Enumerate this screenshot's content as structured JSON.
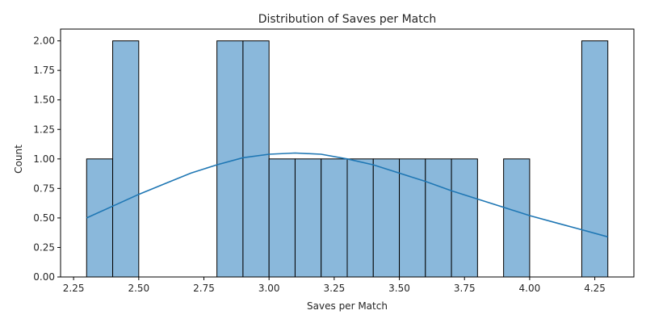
{
  "chart_data": {
    "type": "bar",
    "subtype": "histogram",
    "title": "Distribution of Saves per Match",
    "xlabel": "Saves per Match",
    "ylabel": "Count",
    "xlim": [
      2.2,
      4.4
    ],
    "ylim": [
      0,
      2.1
    ],
    "bin_width": 0.1,
    "bins": [
      {
        "start": 2.3,
        "end": 2.4,
        "count": 1
      },
      {
        "start": 2.4,
        "end": 2.5,
        "count": 2
      },
      {
        "start": 2.8,
        "end": 2.9,
        "count": 2
      },
      {
        "start": 2.9,
        "end": 3.0,
        "count": 2
      },
      {
        "start": 3.0,
        "end": 3.1,
        "count": 1
      },
      {
        "start": 3.1,
        "end": 3.2,
        "count": 1
      },
      {
        "start": 3.2,
        "end": 3.3,
        "count": 1
      },
      {
        "start": 3.3,
        "end": 3.4,
        "count": 1
      },
      {
        "start": 3.4,
        "end": 3.5,
        "count": 1
      },
      {
        "start": 3.5,
        "end": 3.6,
        "count": 1
      },
      {
        "start": 3.6,
        "end": 3.7,
        "count": 1
      },
      {
        "start": 3.7,
        "end": 3.8,
        "count": 1
      },
      {
        "start": 3.9,
        "end": 4.0,
        "count": 1
      },
      {
        "start": 4.2,
        "end": 4.3,
        "count": 2
      }
    ],
    "kde": {
      "x": [
        2.3,
        2.4,
        2.5,
        2.6,
        2.7,
        2.8,
        2.9,
        3.0,
        3.1,
        3.2,
        3.3,
        3.4,
        3.5,
        3.6,
        3.7,
        3.8,
        3.9,
        4.0,
        4.1,
        4.2,
        4.3
      ],
      "y": [
        0.5,
        0.6,
        0.7,
        0.79,
        0.88,
        0.95,
        1.01,
        1.04,
        1.05,
        1.04,
        1.0,
        0.95,
        0.88,
        0.81,
        0.73,
        0.66,
        0.59,
        0.52,
        0.46,
        0.4,
        0.34
      ]
    },
    "xticks": [
      "2.25",
      "2.50",
      "2.75",
      "3.00",
      "3.25",
      "3.50",
      "3.75",
      "4.00",
      "4.25"
    ],
    "xtick_values": [
      2.25,
      2.5,
      2.75,
      3.0,
      3.25,
      3.5,
      3.75,
      4.0,
      4.25
    ],
    "yticks": [
      "0.00",
      "0.25",
      "0.50",
      "0.75",
      "1.00",
      "1.25",
      "1.50",
      "1.75",
      "2.00"
    ],
    "ytick_values": [
      0,
      0.25,
      0.5,
      0.75,
      1.0,
      1.25,
      1.5,
      1.75,
      2.0
    ],
    "grid": false,
    "colors": {
      "bar_fill": "#8ab8db",
      "bar_edge": "#000000",
      "kde_line": "#1f77b4",
      "axis": "#000000"
    }
  }
}
